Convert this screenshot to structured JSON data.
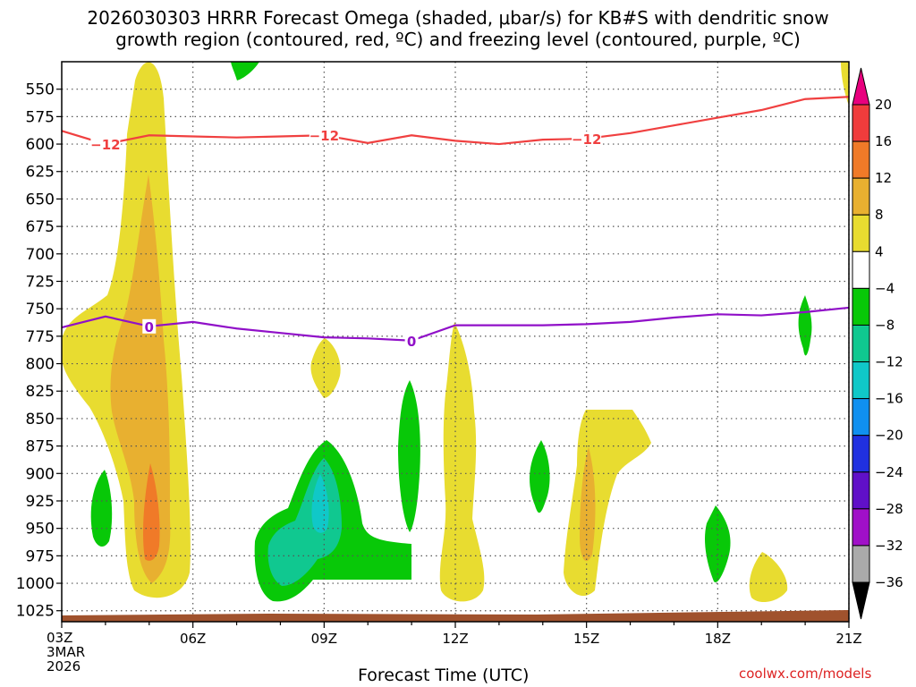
{
  "chart_data": {
    "type": "heatmap",
    "title_line1": "2026030303 HRRR Forecast Omega (shaded, μbar/s) for KB#S with dendritic snow",
    "title_line2": "growth region (contoured, red, ºC) and freezing level (contoured, purple, ºC)",
    "xlabel": "Forecast Time (UTC)",
    "x_start_label": [
      "03Z",
      "3MAR",
      "2026"
    ],
    "x_ticks": [
      "06Z",
      "09Z",
      "12Z",
      "15Z",
      "18Z",
      "21Z"
    ],
    "x_tick_hours": [
      6,
      9,
      12,
      15,
      18,
      21
    ],
    "xlim_hours": [
      3,
      21
    ],
    "y_ticks": [
      550,
      575,
      600,
      625,
      650,
      675,
      700,
      725,
      750,
      775,
      800,
      825,
      850,
      875,
      900,
      925,
      950,
      975,
      1000,
      1025
    ],
    "ylim_hpa": [
      525,
      1035
    ],
    "colorbar": {
      "labels": [
        "20",
        "16",
        "12",
        "8",
        "4",
        "−4",
        "−8",
        "−12",
        "−16",
        "−20",
        "−24",
        "−28",
        "−32",
        "−36"
      ],
      "colors": [
        "#e8007e",
        "#f03c3c",
        "#f07a28",
        "#e8b030",
        "#e8dc30",
        "#ffffff",
        "#08c808",
        "#10c890",
        "#10c8c8",
        "#1090f0",
        "#2030e0",
        "#6010c8",
        "#a010c8",
        "#aaaaaa",
        "#000000"
      ]
    },
    "dgz_contour": {
      "name": "dendritic snow growth region",
      "label": "−12",
      "color": "#f04040",
      "hours": [
        3,
        4,
        5,
        6,
        7,
        8,
        9,
        10,
        11,
        12,
        13,
        14,
        15,
        16,
        17,
        18,
        19,
        20,
        21
      ],
      "pressure": [
        588,
        600,
        592,
        593,
        594,
        593,
        592,
        599,
        592,
        597,
        600,
        596,
        595,
        590,
        583,
        576,
        569,
        559,
        557
      ]
    },
    "freezing_contour": {
      "name": "freezing level",
      "label": "0",
      "color": "#9010c8",
      "hours": [
        3,
        4,
        5,
        6,
        7,
        8,
        9,
        10,
        11,
        12,
        13,
        14,
        15,
        16,
        17,
        18,
        19,
        20,
        21
      ],
      "pressure": [
        767,
        757,
        766,
        762,
        768,
        772,
        776,
        777,
        779,
        765,
        765,
        765,
        764,
        762,
        758,
        755,
        756,
        753,
        749
      ]
    },
    "omega_regions": [
      {
        "label": "ascent core 05Z",
        "level": "8",
        "color": "#e8dc30"
      },
      {
        "label": "ascent core 05Z inner",
        "level": "12",
        "color": "#e8b030"
      },
      {
        "label": "ascent core 05Z peak",
        "level": "16",
        "color": "#f07a28"
      },
      {
        "label": "descent 08-11Z",
        "level": "−8",
        "color": "#08c808"
      },
      {
        "label": "descent 08-09Z inner",
        "level": "−12",
        "color": "#10c890"
      }
    ],
    "credit": "coolwx.com/models"
  }
}
